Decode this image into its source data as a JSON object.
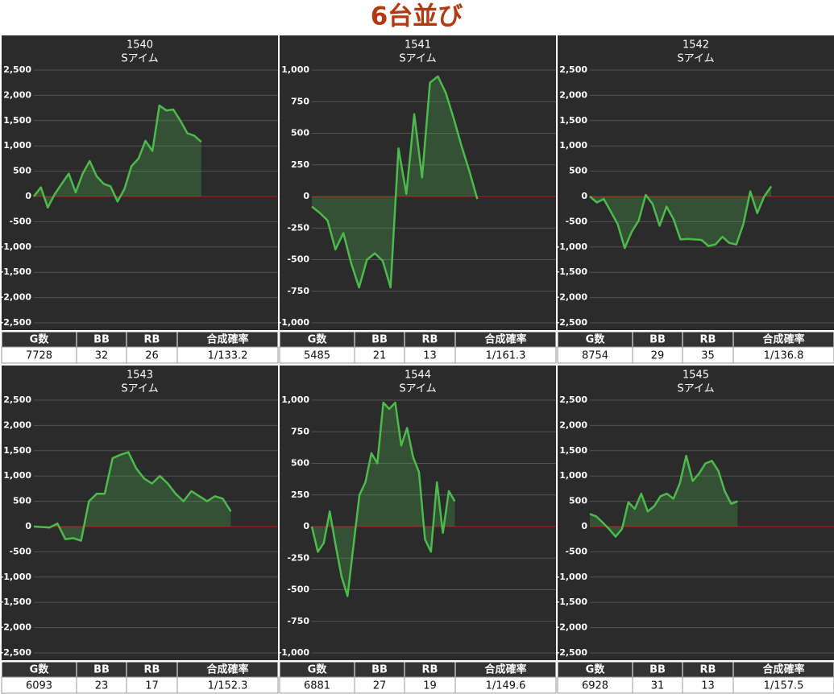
{
  "title": "6台並び",
  "chart_data": [
    {
      "type": "line",
      "title": "1540",
      "subtitle": "Sアイム",
      "color": "#4cbb4c",
      "fill_color": "rgba(76,175,80,0.28)",
      "zero_line_color": "#cc1111",
      "grid": true,
      "values": [
        0,
        180,
        -220,
        50,
        250,
        450,
        80,
        450,
        700,
        400,
        250,
        200,
        -100,
        150,
        600,
        750,
        1100,
        900,
        1800,
        1700,
        1720,
        1500,
        1250,
        1200,
        1080
      ],
      "xlim": [
        0,
        35
      ],
      "ylim": [
        -2500,
        2500
      ],
      "yticks": [
        {
          "value": 2500,
          "label": "2,500"
        },
        {
          "value": 2000,
          "label": "2,000"
        },
        {
          "value": 1500,
          "label": "1,500"
        },
        {
          "value": 1000,
          "label": "1,000"
        },
        500,
        0,
        -500,
        {
          "value": -1000,
          "label": "-1,000"
        },
        {
          "value": -1500,
          "label": "-1,500"
        },
        {
          "value": -2000,
          "label": "-2,000"
        },
        {
          "value": -2500,
          "label": "-2,500"
        }
      ],
      "table": {
        "header": [
          "G数",
          "BB",
          "RB",
          "合成確率"
        ],
        "row": [
          7728,
          32,
          26,
          "1/133.2"
        ]
      }
    },
    {
      "type": "line",
      "title": "1541",
      "subtitle": "Sアイム",
      "color": "#4cbb4c",
      "fill_color": "rgba(76,175,80,0.28)",
      "zero_line_color": "#cc1111",
      "grid": true,
      "values": [
        -80,
        -130,
        -190,
        -420,
        -290,
        -530,
        -720,
        -500,
        -450,
        -510,
        -720,
        380,
        20,
        650,
        150,
        900,
        950,
        820,
        620,
        400,
        200,
        -20
      ],
      "xlim": [
        0,
        31
      ],
      "ylim": [
        -1000,
        1000
      ],
      "yticks": [
        {
          "value": 1000,
          "label": "1,000"
        },
        750,
        500,
        250,
        0,
        -250,
        -500,
        -750,
        {
          "value": -1000,
          "label": "-1,000"
        }
      ],
      "table": {
        "header": [
          "G数",
          "BB",
          "RB",
          "合成確率"
        ],
        "row": [
          5485,
          21,
          13,
          "1/161.3"
        ]
      }
    },
    {
      "type": "line",
      "title": "1542",
      "subtitle": "Sアイム",
      "color": "#4cbb4c",
      "fill_color": "rgba(76,175,80,0.28)",
      "zero_line_color": "#cc1111",
      "grid": true,
      "values": [
        0,
        -120,
        -50,
        -300,
        -550,
        -1020,
        -700,
        -480,
        30,
        -150,
        -580,
        -200,
        -450,
        -850,
        -840,
        -850,
        -860,
        -980,
        -950,
        -800,
        -920,
        -950,
        -550,
        100,
        -330,
        0,
        200
      ],
      "xlim": [
        0,
        35
      ],
      "ylim": [
        -2500,
        2500
      ],
      "yticks": [
        {
          "value": 2500,
          "label": "2,500"
        },
        {
          "value": 2000,
          "label": "2,000"
        },
        {
          "value": 1500,
          "label": "1,500"
        },
        {
          "value": 1000,
          "label": "1,000"
        },
        500,
        0,
        -500,
        {
          "value": -1000,
          "label": "-1,000"
        },
        {
          "value": -1500,
          "label": "-1,500"
        },
        {
          "value": -2000,
          "label": "-2,000"
        },
        {
          "value": -2500,
          "label": "-2,500"
        }
      ],
      "table": {
        "header": [
          "G数",
          "BB",
          "RB",
          "合成確率"
        ],
        "row": [
          8754,
          29,
          35,
          "1/136.8"
        ]
      }
    },
    {
      "type": "line",
      "title": "1543",
      "subtitle": "Sアイム",
      "color": "#4cbb4c",
      "fill_color": "rgba(76,175,80,0.28)",
      "zero_line_color": "#cc1111",
      "grid": true,
      "values": [
        0,
        -10,
        -20,
        60,
        -250,
        -230,
        -280,
        500,
        650,
        650,
        1350,
        1420,
        1470,
        1150,
        950,
        850,
        1000,
        850,
        650,
        500,
        700,
        600,
        500,
        600,
        550,
        300
      ],
      "xlim": [
        0,
        31
      ],
      "ylim": [
        -2500,
        2500
      ],
      "yticks": [
        {
          "value": 2500,
          "label": "2,500"
        },
        {
          "value": 2000,
          "label": "2,000"
        },
        {
          "value": 1500,
          "label": "1,500"
        },
        {
          "value": 1000,
          "label": "1,000"
        },
        500,
        0,
        -500,
        {
          "value": -1000,
          "label": "-1,000"
        },
        {
          "value": -1500,
          "label": "-1,500"
        },
        {
          "value": -2000,
          "label": "-2,000"
        },
        {
          "value": -2500,
          "label": "-2,500"
        }
      ],
      "table": {
        "header": [
          "G数",
          "BB",
          "RB",
          "合成確率"
        ],
        "row": [
          6093,
          23,
          17,
          "1/152.3"
        ]
      }
    },
    {
      "type": "line",
      "title": "1544",
      "subtitle": "Sアイム",
      "color": "#4cbb4c",
      "fill_color": "rgba(76,175,80,0.28)",
      "zero_line_color": "#cc1111",
      "grid": true,
      "values": [
        0,
        -200,
        -130,
        120,
        -150,
        -400,
        -550,
        -150,
        250,
        350,
        580,
        500,
        980,
        930,
        980,
        640,
        780,
        550,
        430,
        -100,
        -200,
        350,
        -50,
        280,
        200
      ],
      "xlim": [
        0,
        41
      ],
      "ylim": [
        -1000,
        1000
      ],
      "yticks": [
        {
          "value": 1000,
          "label": "1,000"
        },
        750,
        500,
        250,
        0,
        -250,
        -500,
        -750,
        {
          "value": -1000,
          "label": "-1,000"
        }
      ],
      "table": {
        "header": [
          "G数",
          "BB",
          "RB",
          "合成確率"
        ],
        "row": [
          6881,
          27,
          19,
          "1/149.6"
        ]
      }
    },
    {
      "type": "line",
      "title": "1545",
      "subtitle": "Sアイム",
      "color": "#4cbb4c",
      "fill_color": "rgba(76,175,80,0.28)",
      "zero_line_color": "#cc1111",
      "grid": true,
      "values": [
        250,
        200,
        80,
        -50,
        -200,
        -50,
        480,
        350,
        650,
        300,
        400,
        600,
        650,
        550,
        850,
        1400,
        900,
        1050,
        1250,
        1300,
        1100,
        700,
        450,
        500
      ],
      "xlim": [
        0,
        38
      ],
      "ylim": [
        -2500,
        2500
      ],
      "yticks": [
        {
          "value": 2500,
          "label": "2,500"
        },
        {
          "value": 2000,
          "label": "2,000"
        },
        {
          "value": 1500,
          "label": "1,500"
        },
        {
          "value": 1000,
          "label": "1,000"
        },
        500,
        0,
        -500,
        {
          "value": -1000,
          "label": "-1,000"
        },
        {
          "value": -1500,
          "label": "-1,500"
        },
        {
          "value": -2000,
          "label": "-2,000"
        },
        {
          "value": -2500,
          "label": "-2,500"
        }
      ],
      "table": {
        "header": [
          "G数",
          "BB",
          "RB",
          "合成確率"
        ],
        "row": [
          6928,
          31,
          13,
          "1/157.5"
        ]
      }
    }
  ]
}
